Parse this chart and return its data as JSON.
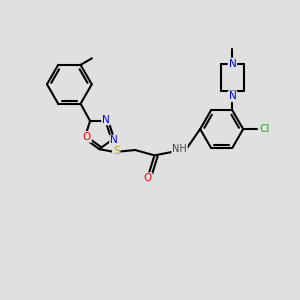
{
  "bg_color": "#e0e0e0",
  "bond_color": "#000000",
  "bond_width": 1.5,
  "figsize": [
    3.0,
    3.0
  ],
  "dpi": 100,
  "atom_colors": {
    "N": "#0000ff",
    "O": "#ff0000",
    "S": "#bbaa00",
    "Cl": "#00bb00",
    "H": "#444444",
    "C": "#000000"
  }
}
